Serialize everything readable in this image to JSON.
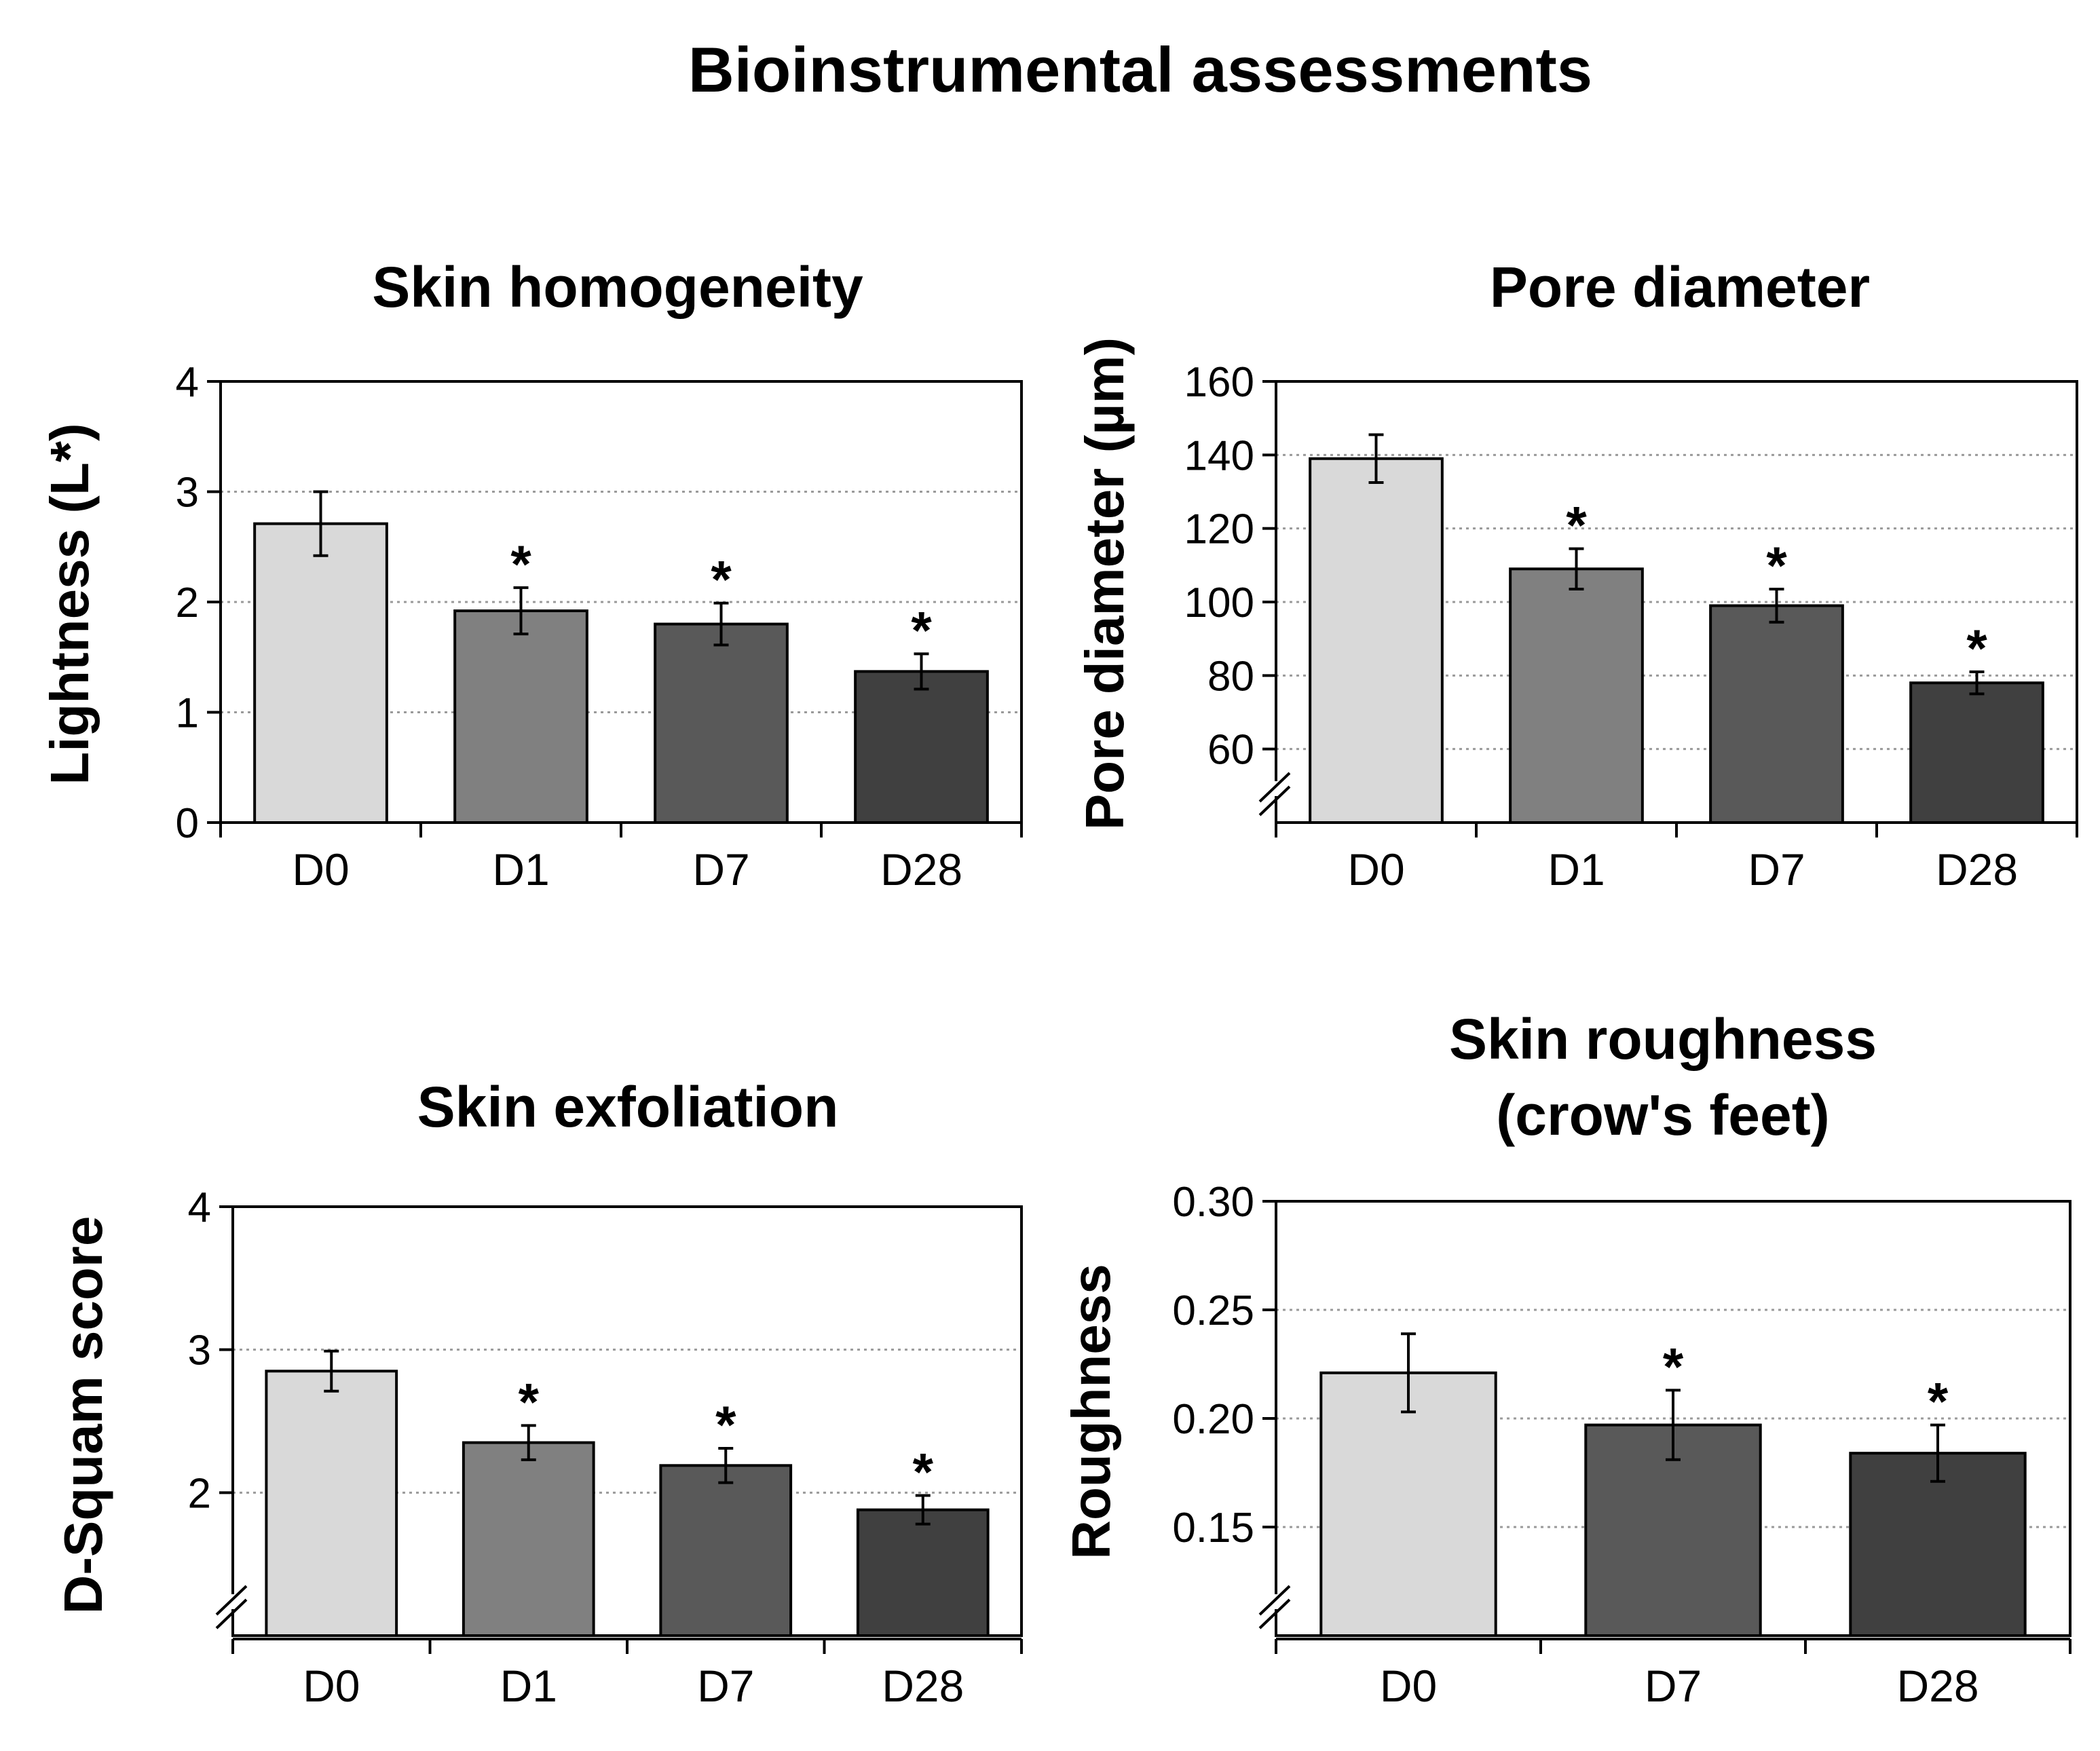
{
  "figure_title": "Bioinstrumental assessments",
  "chart_data": [
    {
      "type": "bar",
      "title": "Skin homogeneity",
      "ylabel": "Lightness (L*)",
      "xlabel": "",
      "ylim": [
        0,
        4
      ],
      "yticks": [
        0,
        1,
        2,
        3,
        4
      ],
      "ytick_labels": [
        "0",
        "1",
        "2",
        "3",
        "4"
      ],
      "axis_break": false,
      "categories": [
        "D0",
        "D1",
        "D7",
        "D28"
      ],
      "values": [
        2.71,
        1.92,
        1.8,
        1.37
      ],
      "errors": [
        0.29,
        0.21,
        0.19,
        0.16
      ],
      "significant": [
        "",
        "*",
        "*",
        "*"
      ],
      "colors": [
        "#d9d9d9",
        "#808080",
        "#595959",
        "#404040"
      ],
      "grid": true
    },
    {
      "type": "bar",
      "title": "Pore diameter",
      "ylabel": "Pore diameter (µm)",
      "xlabel": "",
      "ylim": [
        40,
        160
      ],
      "yticks": [
        60,
        80,
        100,
        120,
        140,
        160
      ],
      "ytick_labels": [
        "60",
        "80",
        "100",
        "120",
        "140",
        "160"
      ],
      "axis_break": true,
      "categories": [
        "D0",
        "D1",
        "D7",
        "D28"
      ],
      "values": [
        139,
        109,
        99,
        78
      ],
      "errors": [
        6.5,
        5.5,
        4.5,
        3
      ],
      "significant": [
        "",
        "*",
        "*",
        "*"
      ],
      "colors": [
        "#d9d9d9",
        "#808080",
        "#595959",
        "#404040"
      ],
      "grid": true
    },
    {
      "type": "bar",
      "title": "Skin exfoliation",
      "ylabel": "D-Squam score",
      "xlabel": "",
      "ylim": [
        1,
        4
      ],
      "yticks": [
        2,
        3,
        4
      ],
      "ytick_labels": [
        "2",
        "3",
        "4"
      ],
      "axis_break": true,
      "categories": [
        "D0",
        "D1",
        "D7",
        "D28"
      ],
      "values": [
        2.85,
        2.35,
        2.19,
        1.88
      ],
      "errors": [
        0.14,
        0.12,
        0.12,
        0.1
      ],
      "significant": [
        "",
        "*",
        "*",
        "*"
      ],
      "colors": [
        "#d9d9d9",
        "#808080",
        "#595959",
        "#404040"
      ],
      "grid": true
    },
    {
      "type": "bar",
      "title": "Skin roughness (crow's feet)",
      "title_lines": [
        "Skin roughness",
        "(crow's feet)"
      ],
      "ylabel": "Roughness",
      "xlabel": "",
      "ylim": [
        0.1,
        0.3
      ],
      "yticks": [
        0.15,
        0.2,
        0.25,
        0.3
      ],
      "ytick_labels": [
        "0.15",
        "0.20",
        "0.25",
        "0.30"
      ],
      "axis_break": true,
      "categories": [
        "D0",
        "D7",
        "D28"
      ],
      "values": [
        0.221,
        0.197,
        0.184
      ],
      "errors": [
        0.018,
        0.016,
        0.013
      ],
      "significant": [
        "",
        "*",
        "*"
      ],
      "colors": [
        "#d9d9d9",
        "#595959",
        "#404040"
      ],
      "grid": true
    }
  ]
}
